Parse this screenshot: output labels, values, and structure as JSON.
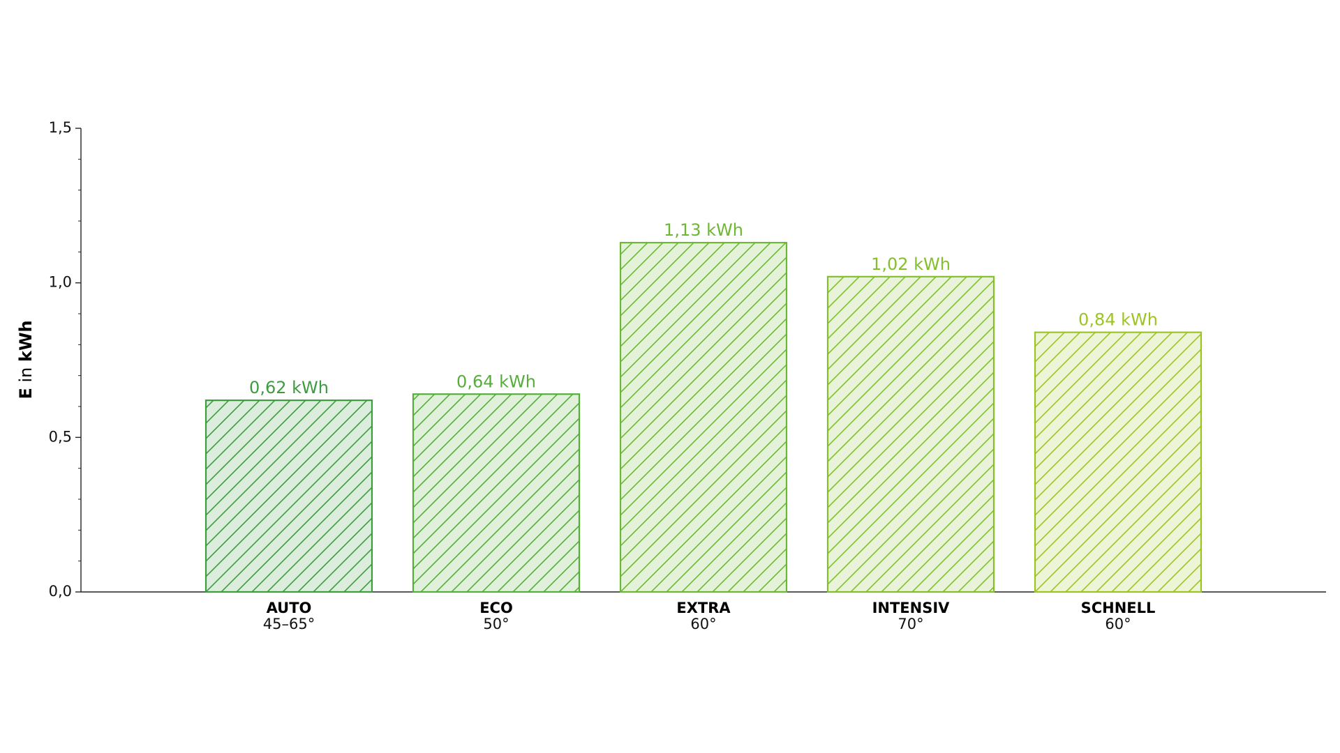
{
  "chart_data": {
    "type": "bar",
    "ylabel": {
      "symbol": "E",
      "connector": "in",
      "unit": "kWh"
    },
    "categories": [
      "AUTO",
      "ECO",
      "EXTRA",
      "INTENSIV",
      "SCHNELL"
    ],
    "category_details": [
      "45–65°",
      "50°",
      "60°",
      "70°",
      "60°"
    ],
    "values": [
      0.62,
      0.64,
      1.13,
      1.02,
      0.84
    ],
    "value_labels": [
      "0,62 kWh",
      "0,64 kWh",
      "1,13 kWh",
      "1,02 kWh",
      "0,84 kWh"
    ],
    "colors": [
      "#3d9c40",
      "#55ad3a",
      "#6cb832",
      "#82bf2a",
      "#9cc423"
    ],
    "hatch": "/",
    "ylim": [
      0,
      1.5
    ],
    "yticks": [
      {
        "value": 0,
        "label": "0,0"
      },
      {
        "value": 0.5,
        "label": "0,5"
      },
      {
        "value": 1.0,
        "label": "1,0"
      },
      {
        "value": 1.5,
        "label": "1,5"
      }
    ],
    "yminorticks": [
      0.1,
      0.2,
      0.3,
      0.4,
      0.6,
      0.7,
      0.8,
      0.9,
      1.1,
      1.2,
      1.3,
      1.4
    ]
  }
}
